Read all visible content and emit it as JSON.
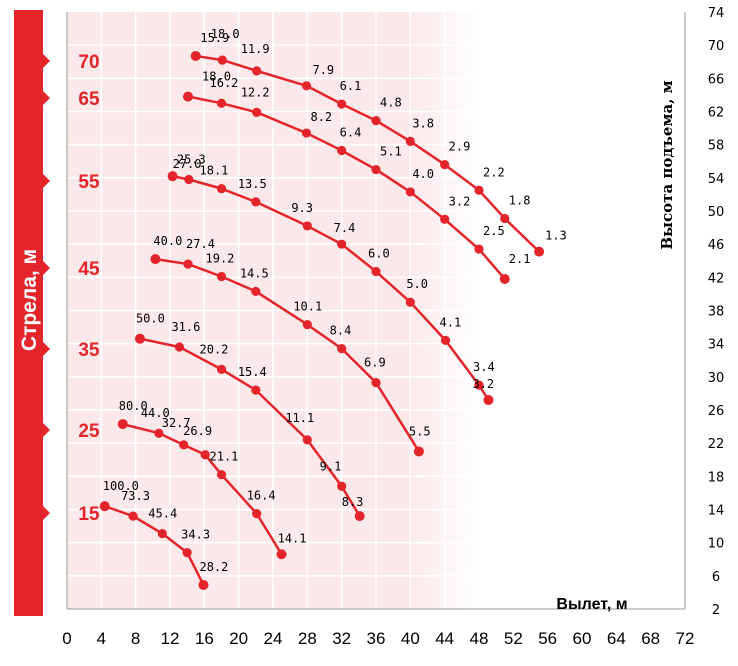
{
  "chart_data": {
    "type": "line",
    "x_ticks": [
      "0",
      "4",
      "8",
      "12",
      "16",
      "20",
      "24",
      "28",
      "32",
      "36",
      "40",
      "44",
      "48",
      "52",
      "56",
      "60",
      "64",
      "68",
      "72"
    ],
    "y_ticks": [
      "2",
      "6",
      "10",
      "14",
      "18",
      "22",
      "26",
      "30",
      "34",
      "38",
      "42",
      "46",
      "50",
      "54",
      "58",
      "62",
      "66",
      "70",
      "74"
    ],
    "xlabel": "Вылет, м",
    "ylabel": "Высота подъема, м",
    "left_title": "Стрела, м",
    "xlim": [
      0,
      72
    ],
    "ylim": [
      2,
      74
    ],
    "colors": {
      "series": "#e3252b",
      "band": "#fbe9ea",
      "grid": "#ffffff",
      "axis": "#999999"
    },
    "boom_labels": [
      "70",
      "65",
      "55",
      "45",
      "35",
      "25",
      "15"
    ],
    "series": [
      {
        "boom": "70",
        "points": [
          [
            15.0,
            68.7
          ],
          [
            18.1,
            68.2
          ],
          [
            22.1,
            66.9
          ],
          [
            27.9,
            65.1
          ],
          [
            32.0,
            62.9
          ],
          [
            36.0,
            60.9
          ],
          [
            40.0,
            58.4
          ],
          [
            44.0,
            55.6
          ],
          [
            48.0,
            52.5
          ],
          [
            51.0,
            49.1
          ],
          [
            55.0,
            45.1
          ]
        ],
        "labels": [
          "18.0",
          "15.9",
          "11.9",
          "7.9",
          "6.1",
          "4.8",
          "3.8",
          "2.9",
          "2.2",
          "1.8",
          "1.3"
        ]
      },
      {
        "boom": "65",
        "points": [
          [
            14.1,
            63.8
          ],
          [
            18.0,
            63.0
          ],
          [
            22.1,
            61.9
          ],
          [
            27.9,
            59.4
          ],
          [
            32.0,
            57.3
          ],
          [
            36.0,
            55.0
          ],
          [
            40.0,
            52.3
          ],
          [
            44.0,
            49.0
          ],
          [
            48.0,
            45.4
          ],
          [
            51.0,
            41.8
          ]
        ],
        "labels": [
          "18.0",
          "16.2",
          "12.2",
          "8.2",
          "6.4",
          "5.1",
          "4.0",
          "3.2",
          "2.5",
          "2.1"
        ]
      },
      {
        "boom": "55",
        "points": [
          [
            12.3,
            54.2
          ],
          [
            14.2,
            53.8
          ],
          [
            18.0,
            52.7
          ],
          [
            22.0,
            51.1
          ],
          [
            28.0,
            48.2
          ],
          [
            32.0,
            46.0
          ],
          [
            36.0,
            42.7
          ],
          [
            40.0,
            39.0
          ],
          [
            44.1,
            34.4
          ],
          [
            48.0,
            29.0
          ],
          [
            49.1,
            27.2
          ]
        ],
        "labels": [
          "27.0",
          "25.3",
          "18.1",
          "13.5",
          "9.3",
          "7.4",
          "6.0",
          "5.0",
          "4.1",
          "3.4",
          "3.2"
        ]
      },
      {
        "boom": "45",
        "points": [
          [
            10.3,
            44.2
          ],
          [
            14.1,
            43.6
          ],
          [
            18.0,
            42.1
          ],
          [
            22.0,
            40.3
          ],
          [
            28.0,
            36.3
          ],
          [
            32.0,
            33.4
          ],
          [
            36.0,
            29.3
          ],
          [
            41.0,
            21.0
          ]
        ],
        "labels": [
          "40.0",
          "27.4",
          "19.2",
          "14.5",
          "10.1",
          "8.4",
          "6.9",
          "5.5"
        ]
      },
      {
        "boom": "35",
        "points": [
          [
            8.5,
            34.6
          ],
          [
            13.1,
            33.6
          ],
          [
            18.0,
            30.9
          ],
          [
            22.0,
            28.4
          ],
          [
            28.0,
            22.4
          ],
          [
            32.0,
            16.8
          ],
          [
            34.1,
            13.2
          ]
        ],
        "labels": [
          "50.0",
          "31.6",
          "20.2",
          "15.4",
          "11.1",
          "9.1",
          "8.3"
        ]
      },
      {
        "boom": "25",
        "points": [
          [
            6.5,
            24.3
          ],
          [
            10.7,
            23.2
          ],
          [
            13.6,
            21.8
          ],
          [
            16.1,
            20.6
          ],
          [
            18.0,
            18.2
          ],
          [
            22.1,
            13.5
          ],
          [
            25.0,
            8.6
          ]
        ],
        "labels": [
          "80.0",
          "44.0",
          "32.7",
          "26.9",
          "21.1",
          "16.4",
          "14.1"
        ]
      },
      {
        "boom": "15",
        "points": [
          [
            4.4,
            14.4
          ],
          [
            7.7,
            13.2
          ],
          [
            11.1,
            11.1
          ],
          [
            14.0,
            8.8
          ],
          [
            15.9,
            4.9
          ]
        ],
        "labels": [
          "100.0",
          "73.3",
          "45.4",
          "34.3",
          "28.2"
        ]
      }
    ]
  }
}
